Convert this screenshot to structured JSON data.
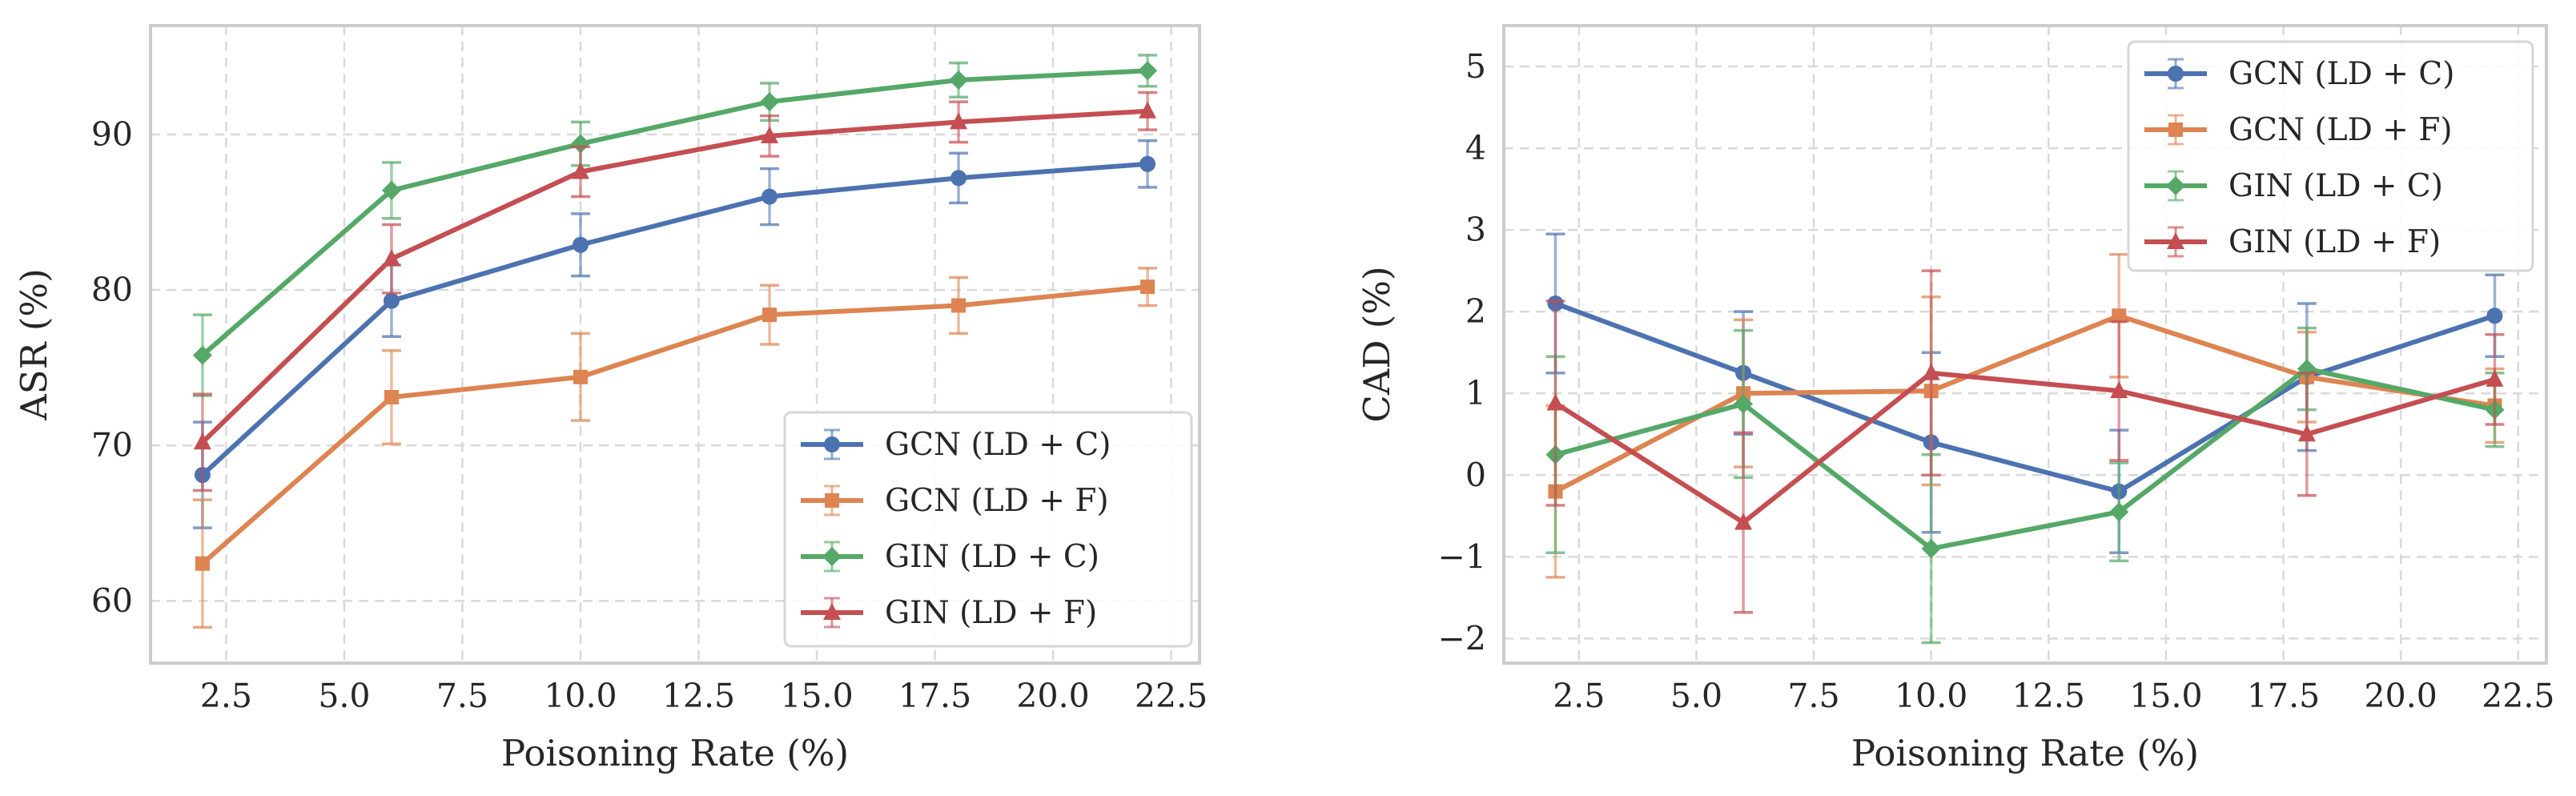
{
  "chart_data": [
    {
      "type": "line",
      "xlabel": "Poisoning Rate (%)",
      "ylabel": "ASR (%)",
      "xlim": [
        0.9,
        23.1
      ],
      "ylim": [
        56,
        97
      ],
      "xticks": [
        2.5,
        5.0,
        7.5,
        10.0,
        12.5,
        15.0,
        17.5,
        20.0,
        22.5
      ],
      "xtick_labels": [
        "2.5",
        "5.0",
        "7.5",
        "10.0",
        "12.5",
        "15.0",
        "17.5",
        "20.0",
        "22.5"
      ],
      "yticks": [
        60,
        70,
        80,
        90
      ],
      "ytick_labels": [
        "60",
        "70",
        "80",
        "90"
      ],
      "grid": true,
      "legend_position": "lower-right",
      "x": [
        2,
        6,
        10,
        14,
        18,
        22
      ],
      "series": [
        {
          "name": "GCN (LD + C)",
          "color": "#4c72b0",
          "marker": "circle",
          "values": [
            68.1,
            79.3,
            82.9,
            86.0,
            87.2,
            88.1
          ],
          "errors": [
            3.4,
            2.3,
            2.0,
            1.8,
            1.6,
            1.5
          ]
        },
        {
          "name": "GCN (LD + F)",
          "color": "#dd8452",
          "marker": "square",
          "values": [
            62.4,
            73.1,
            74.4,
            78.4,
            79.0,
            80.2
          ],
          "errors": [
            4.1,
            3.0,
            2.8,
            1.9,
            1.8,
            1.2
          ]
        },
        {
          "name": "GIN (LD + C)",
          "color": "#55a868",
          "marker": "diamond",
          "values": [
            75.8,
            86.4,
            89.4,
            92.1,
            93.5,
            94.1
          ],
          "errors": [
            2.6,
            1.8,
            1.4,
            1.2,
            1.1,
            1.0
          ]
        },
        {
          "name": "GIN (LD + F)",
          "color": "#c44e52",
          "marker": "triangle",
          "values": [
            70.2,
            82.0,
            87.6,
            89.9,
            90.8,
            91.5
          ],
          "errors": [
            3.1,
            2.2,
            1.6,
            1.3,
            1.3,
            1.2
          ]
        }
      ]
    },
    {
      "type": "line",
      "xlabel": "Poisoning Rate (%)",
      "ylabel": "CAD (%)",
      "xlim": [
        0.9,
        23.1
      ],
      "ylim": [
        -2.3,
        5.5
      ],
      "xticks": [
        2.5,
        5.0,
        7.5,
        10.0,
        12.5,
        15.0,
        17.5,
        20.0,
        22.5
      ],
      "xtick_labels": [
        "2.5",
        "5.0",
        "7.5",
        "10.0",
        "12.5",
        "15.0",
        "17.5",
        "20.0",
        "22.5"
      ],
      "yticks": [
        -2,
        -1,
        0,
        1,
        2,
        3,
        4,
        5
      ],
      "ytick_labels": [
        "−2",
        "−1",
        "0",
        "1",
        "2",
        "3",
        "4",
        "5"
      ],
      "grid": true,
      "legend_position": "top-right",
      "x": [
        2,
        6,
        10,
        14,
        18,
        22
      ],
      "series": [
        {
          "name": "GCN (LD + C)",
          "color": "#4c72b0",
          "marker": "circle",
          "values": [
            2.1,
            1.25,
            0.4,
            -0.2,
            1.2,
            1.95
          ],
          "errors": [
            0.85,
            0.75,
            1.1,
            0.75,
            0.9,
            0.5
          ]
        },
        {
          "name": "GCN (LD + F)",
          "color": "#dd8452",
          "marker": "square",
          "values": [
            -0.2,
            1.0,
            1.03,
            1.95,
            1.2,
            0.85
          ],
          "errors": [
            1.05,
            0.9,
            1.15,
            0.75,
            0.55,
            0.45
          ]
        },
        {
          "name": "GIN (LD + C)",
          "color": "#55a868",
          "marker": "diamond",
          "values": [
            0.25,
            0.87,
            -0.9,
            -0.45,
            1.3,
            0.8
          ],
          "errors": [
            1.2,
            0.9,
            1.15,
            0.6,
            0.5,
            0.45
          ]
        },
        {
          "name": "GIN (LD + F)",
          "color": "#c44e52",
          "marker": "triangle",
          "values": [
            0.88,
            -0.58,
            1.25,
            1.03,
            0.5,
            1.17
          ],
          "errors": [
            1.25,
            1.1,
            1.25,
            0.85,
            0.75,
            0.55
          ]
        }
      ]
    }
  ]
}
